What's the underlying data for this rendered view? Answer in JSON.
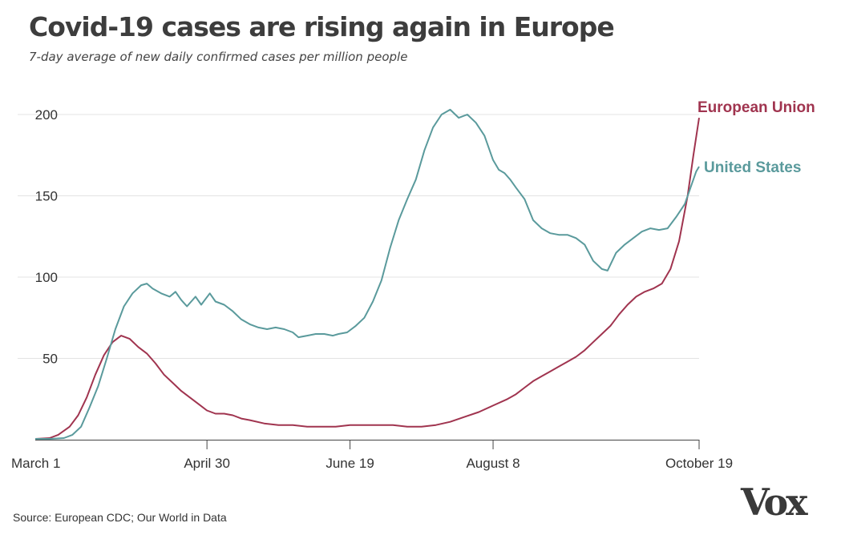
{
  "chart_data": {
    "type": "line",
    "title": "Covid-19 cases are rising again in Europe",
    "subtitle": "7-day average of new daily confirmed cases per million people",
    "xlabel": "",
    "ylabel": "",
    "ylim": [
      0,
      200
    ],
    "y_ticks": [
      50,
      100,
      150,
      200
    ],
    "x_ticks": [
      {
        "day": 0,
        "label": "March 1"
      },
      {
        "day": 60,
        "label": "April 30"
      },
      {
        "day": 110,
        "label": "June 19"
      },
      {
        "day": 160,
        "label": "August 8"
      },
      {
        "day": 232,
        "label": "October 19"
      }
    ],
    "grid": true,
    "series": [
      {
        "name": "European Union",
        "color": "#a0344f",
        "points": [
          [
            0,
            0.5
          ],
          [
            5,
            1
          ],
          [
            8,
            3
          ],
          [
            12,
            8
          ],
          [
            15,
            15
          ],
          [
            18,
            26
          ],
          [
            21,
            40
          ],
          [
            24,
            52
          ],
          [
            27,
            60
          ],
          [
            30,
            64
          ],
          [
            33,
            62
          ],
          [
            36,
            57
          ],
          [
            39,
            53
          ],
          [
            42,
            47
          ],
          [
            45,
            40
          ],
          [
            48,
            35
          ],
          [
            51,
            30
          ],
          [
            54,
            26
          ],
          [
            57,
            22
          ],
          [
            60,
            18
          ],
          [
            63,
            16
          ],
          [
            66,
            16
          ],
          [
            69,
            15
          ],
          [
            72,
            13
          ],
          [
            75,
            12
          ],
          [
            80,
            10
          ],
          [
            85,
            9
          ],
          [
            90,
            9
          ],
          [
            95,
            8
          ],
          [
            100,
            8
          ],
          [
            105,
            8
          ],
          [
            110,
            9
          ],
          [
            115,
            9
          ],
          [
            120,
            9
          ],
          [
            125,
            9
          ],
          [
            130,
            8
          ],
          [
            135,
            8
          ],
          [
            140,
            9
          ],
          [
            145,
            11
          ],
          [
            150,
            14
          ],
          [
            155,
            17
          ],
          [
            160,
            21
          ],
          [
            165,
            25
          ],
          [
            168,
            28
          ],
          [
            171,
            32
          ],
          [
            174,
            36
          ],
          [
            177,
            39
          ],
          [
            180,
            42
          ],
          [
            183,
            45
          ],
          [
            186,
            48
          ],
          [
            189,
            51
          ],
          [
            192,
            55
          ],
          [
            195,
            60
          ],
          [
            198,
            65
          ],
          [
            201,
            70
          ],
          [
            204,
            77
          ],
          [
            207,
            83
          ],
          [
            210,
            88
          ],
          [
            213,
            91
          ],
          [
            216,
            93
          ],
          [
            219,
            96
          ],
          [
            222,
            105
          ],
          [
            225,
            122
          ],
          [
            228,
            150
          ],
          [
            230,
            175
          ],
          [
            232,
            198
          ]
        ]
      },
      {
        "name": "United States",
        "color": "#5a9a9c",
        "points": [
          [
            0,
            0.5
          ],
          [
            5,
            0.5
          ],
          [
            10,
            1
          ],
          [
            13,
            3
          ],
          [
            16,
            8
          ],
          [
            19,
            20
          ],
          [
            22,
            33
          ],
          [
            25,
            50
          ],
          [
            28,
            68
          ],
          [
            31,
            82
          ],
          [
            34,
            90
          ],
          [
            37,
            95
          ],
          [
            39,
            96
          ],
          [
            41,
            93
          ],
          [
            44,
            90
          ],
          [
            47,
            88
          ],
          [
            49,
            91
          ],
          [
            51,
            86
          ],
          [
            53,
            82
          ],
          [
            56,
            88
          ],
          [
            58,
            83
          ],
          [
            61,
            90
          ],
          [
            63,
            85
          ],
          [
            66,
            83
          ],
          [
            69,
            79
          ],
          [
            72,
            74
          ],
          [
            75,
            71
          ],
          [
            78,
            69
          ],
          [
            81,
            68
          ],
          [
            84,
            69
          ],
          [
            87,
            68
          ],
          [
            90,
            66
          ],
          [
            92,
            63
          ],
          [
            95,
            64
          ],
          [
            98,
            65
          ],
          [
            101,
            65
          ],
          [
            104,
            64
          ],
          [
            106,
            65
          ],
          [
            109,
            66
          ],
          [
            112,
            70
          ],
          [
            115,
            75
          ],
          [
            118,
            85
          ],
          [
            121,
            98
          ],
          [
            124,
            118
          ],
          [
            127,
            135
          ],
          [
            130,
            148
          ],
          [
            133,
            160
          ],
          [
            136,
            178
          ],
          [
            139,
            192
          ],
          [
            142,
            200
          ],
          [
            145,
            203
          ],
          [
            148,
            198
          ],
          [
            151,
            200
          ],
          [
            154,
            195
          ],
          [
            157,
            187
          ],
          [
            160,
            172
          ],
          [
            162,
            166
          ],
          [
            164,
            164
          ],
          [
            166,
            160
          ],
          [
            168,
            155
          ],
          [
            171,
            148
          ],
          [
            174,
            135
          ],
          [
            177,
            130
          ],
          [
            180,
            127
          ],
          [
            183,
            126
          ],
          [
            186,
            126
          ],
          [
            189,
            124
          ],
          [
            192,
            120
          ],
          [
            195,
            110
          ],
          [
            198,
            105
          ],
          [
            200,
            104
          ],
          [
            203,
            115
          ],
          [
            206,
            120
          ],
          [
            209,
            124
          ],
          [
            212,
            128
          ],
          [
            215,
            130
          ],
          [
            218,
            129
          ],
          [
            221,
            130
          ],
          [
            224,
            137
          ],
          [
            227,
            145
          ],
          [
            229,
            155
          ],
          [
            231,
            165
          ],
          [
            232,
            168
          ]
        ]
      }
    ]
  },
  "source": "Source: European CDC; Our World in Data",
  "logo_text": "Vox"
}
